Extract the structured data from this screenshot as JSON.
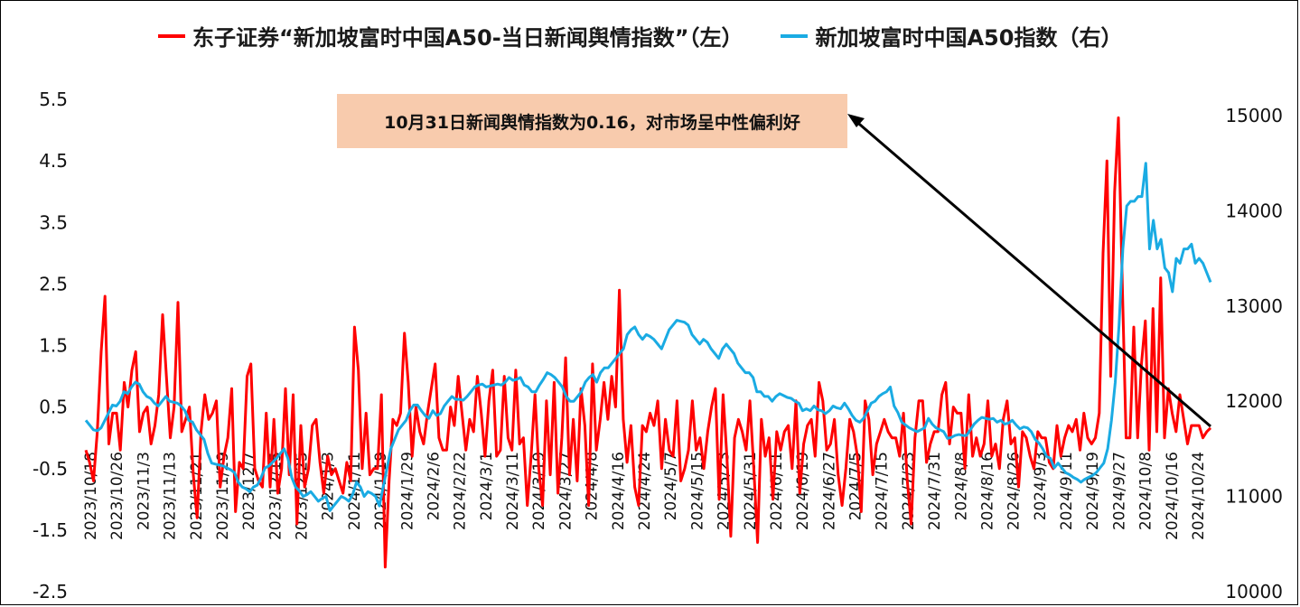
{
  "chart_data": {
    "type": "line",
    "title": "",
    "legend": [
      "东子证券“新加坡富时中国A50-当日新闻舆情指数”（左）",
      "新加坡富时中国A50指数（右）"
    ],
    "legend_position": "top",
    "annotation": "10月31日新闻舆情指数为0.16，对市场呈中性偏利好",
    "y_left": {
      "lim": [
        -2.5,
        5.5
      ],
      "ticks": [
        "5.5",
        "4.5",
        "3.5",
        "2.5",
        "1.5",
        "0.5",
        "-0.5",
        "-1.5",
        "-2.5"
      ]
    },
    "y_right": {
      "lim": [
        10000,
        15000
      ],
      "ticks": [
        "15000",
        "14000",
        "13000",
        "12000",
        "11000",
        "10000"
      ]
    },
    "grid": false,
    "x_tick_labels": [
      "2023/10/18",
      "2023/10/26",
      "2023/11/3",
      "2023/11/13",
      "2023/11/21",
      "2023/11/29",
      "2023/12/7",
      "2023/12/15",
      "2023/12/25",
      "2024/1/3",
      "2024/1/11",
      "2024/1/19",
      "2024/1/29",
      "2024/2/6",
      "2024/2/22",
      "2024/3/1",
      "2024/3/11",
      "2024/3/19",
      "2024/3/27",
      "2024/4/8",
      "2024/4/16",
      "2024/4/24",
      "2024/5/7",
      "2024/5/15",
      "2024/5/23",
      "2024/5/31",
      "2024/6/11",
      "2024/6/19",
      "2024/6/27",
      "2024/7/5",
      "2024/7/15",
      "2024/7/23",
      "2024/7/31",
      "2024/8/8",
      "2024/8/16",
      "2024/8/26",
      "2024/9/3",
      "2024/9/11",
      "2024/9/19",
      "2024/9/27",
      "2024/10/8",
      "2024/10/16",
      "2024/10/24"
    ],
    "series": [
      {
        "name": "东子证券“新加坡富时中国A50-当日新闻舆情指数”（左）",
        "axis": "left",
        "color": "#ff0000",
        "values": [
          -0.2,
          -0.4,
          -0.7,
          0.1,
          1.4,
          2.3,
          -0.1,
          0.4,
          0.4,
          -0.2,
          0.9,
          0.5,
          1.1,
          1.4,
          0.1,
          0.4,
          0.5,
          -0.1,
          0.2,
          0.7,
          2.0,
          1.0,
          0.0,
          0.5,
          2.2,
          0.1,
          0.3,
          0.5,
          -0.6,
          -1.3,
          0.1,
          0.7,
          0.3,
          0.4,
          0.6,
          -0.8,
          -0.3,
          0.0,
          0.8,
          -1.2,
          -0.4,
          -0.5,
          1.0,
          1.2,
          -0.5,
          -0.7,
          -0.8,
          0.4,
          -0.8,
          0.3,
          -0.9,
          -0.5,
          0.8,
          -0.6,
          0.7,
          -1.4,
          0.2,
          -0.8,
          -0.5,
          0.2,
          0.3,
          -0.4,
          -0.9,
          -0.3,
          -0.6,
          -0.5,
          -0.7,
          -0.9,
          -0.4,
          -0.7,
          1.8,
          1.1,
          -0.5,
          0.4,
          -0.6,
          -0.5,
          -0.5,
          0.7,
          -2.1,
          -0.7,
          0.3,
          0.2,
          0.4,
          1.7,
          0.9,
          -0.3,
          0.5,
          0.1,
          -0.1,
          0.4,
          0.8,
          1.2,
          0.0,
          -0.2,
          -0.2,
          0.5,
          0.2,
          1.0,
          0.4,
          -0.2,
          0.3,
          0.1,
          1.0,
          0.4,
          -0.3,
          0.6,
          1.1,
          -0.3,
          -0.2,
          1.0,
          0.0,
          -0.2,
          1.1,
          -0.1,
          0.0,
          -1.1,
          -0.3,
          0.7,
          -0.5,
          -1.1,
          0.6,
          -0.6,
          0.9,
          -0.9,
          0.0,
          1.3,
          -0.6,
          0.3,
          -0.7,
          0.8,
          0.2,
          -1.1,
          1.2,
          -0.2,
          0.3,
          0.9,
          0.3,
          1.0,
          0.5,
          2.4,
          0.3,
          -0.4,
          0.2,
          -0.8,
          -1.1,
          0.2,
          0.1,
          0.4,
          0.2,
          0.6,
          -0.5,
          0.3,
          -0.2,
          -0.3,
          0.6,
          -0.7,
          -0.5,
          -0.2,
          0.6,
          -0.2,
          0.0,
          -0.5,
          0.1,
          0.5,
          0.8,
          -1.0,
          0.7,
          -0.3,
          -1.6,
          0.0,
          0.3,
          0.1,
          -0.2,
          0.6,
          -0.5,
          -1.7,
          0.3,
          -0.3,
          0.0,
          -1.0,
          0.1,
          -0.2,
          0.1,
          0.2,
          -0.5,
          0.6,
          -0.9,
          -0.1,
          0.2,
          0.3,
          -0.3,
          0.9,
          0.6,
          -0.2,
          -0.1,
          0.3,
          -0.6,
          -1.1,
          -0.5,
          0.3,
          0.1,
          -0.3,
          -1.2,
          0.6,
          0.3,
          -0.6,
          -0.1,
          0.1,
          0.3,
          0.1,
          0.0,
          0.0,
          -0.3,
          0.4,
          -0.7,
          -1.4,
          0.0,
          0.6,
          0.6,
          -0.4,
          -0.1,
          0.1,
          0.1,
          0.7,
          0.9,
          -0.1,
          0.5,
          0.4,
          0.4,
          -0.5,
          0.7,
          -0.3,
          0.0,
          -0.3,
          -0.1,
          0.6,
          -0.3,
          -0.1,
          -0.5,
          0.3,
          0.6,
          -0.1,
          0.0,
          -0.8,
          0.1,
          0.0,
          -0.3,
          -0.5,
          0.1,
          0.0,
          0.0,
          -0.4,
          -0.5,
          0.2,
          -0.3,
          0.0,
          0.2,
          0.1,
          0.3,
          -0.2,
          0.4,
          0.0,
          -0.1,
          0.0,
          0.4,
          3.0,
          4.5,
          1.0,
          4.0,
          5.2,
          2.5,
          0.0,
          0.0,
          1.8,
          0.0,
          1.2,
          1.9,
          -0.2,
          2.1,
          0.1,
          2.6,
          0.0,
          0.8,
          0.4,
          0.1,
          0.7,
          0.3,
          -0.1,
          0.2,
          0.2,
          0.2,
          0.0,
          0.1,
          0.16
        ],
        "note": "values approximated from the plotted line"
      },
      {
        "name": "新加坡富时中国A50指数（右）",
        "axis": "right",
        "color": "#1aabe3",
        "values": [
          11800,
          11750,
          11700,
          11690,
          11720,
          11800,
          11880,
          11960,
          11950,
          12000,
          12100,
          12080,
          12150,
          12200,
          12180,
          12100,
          12050,
          12030,
          11980,
          11950,
          12000,
          12050,
          12000,
          11990,
          11980,
          11950,
          11900,
          11800,
          11780,
          11700,
          11650,
          11600,
          11450,
          11350,
          11340,
          11330,
          11320,
          11300,
          11280,
          11250,
          11150,
          11100,
          11080,
          11050,
          11100,
          11120,
          11200,
          11300,
          11320,
          11360,
          11400,
          11450,
          11500,
          11400,
          11200,
          11100,
          11060,
          11000,
          11020,
          11050,
          11000,
          10950,
          10980,
          11000,
          10850,
          10900,
          10950,
          11000,
          10980,
          10950,
          11020,
          11150,
          11100,
          11000,
          11050,
          11030,
          11000,
          10900,
          11100,
          11300,
          11500,
          11600,
          11700,
          11750,
          11800,
          11900,
          11960,
          11960,
          11900,
          11850,
          11820,
          11900,
          11850,
          11870,
          11950,
          12000,
          12050,
          12020,
          12020,
          12010,
          12050,
          12100,
          12150,
          12170,
          12180,
          12150,
          12160,
          12170,
          12180,
          12170,
          12200,
          12250,
          12220,
          12230,
          12250,
          12170,
          12150,
          12100,
          12100,
          12170,
          12230,
          12300,
          12280,
          12250,
          12200,
          12150,
          12050,
          12000,
          12000,
          12050,
          12100,
          12200,
          12250,
          12280,
          12200,
          12300,
          12350,
          12350,
          12400,
          12450,
          12500,
          12550,
          12700,
          12750,
          12780,
          12700,
          12650,
          12700,
          12680,
          12650,
          12600,
          12550,
          12650,
          12750,
          12800,
          12850,
          12840,
          12830,
          12800,
          12700,
          12650,
          12600,
          12650,
          12620,
          12550,
          12500,
          12450,
          12550,
          12600,
          12550,
          12500,
          12400,
          12350,
          12300,
          12300,
          12250,
          12100,
          12100,
          12050,
          12050,
          12000,
          12050,
          12080,
          12060,
          12040,
          12030,
          12000,
          11980,
          11900,
          11920,
          11900,
          11950,
          11910,
          11900,
          11870,
          11900,
          11950,
          11930,
          11920,
          11980,
          11920,
          11850,
          11800,
          11780,
          11820,
          11900,
          11980,
          12000,
          12050,
          12080,
          12100,
          12150,
          11950,
          11880,
          11780,
          11750,
          11720,
          11700,
          11680,
          11700,
          11720,
          11820,
          11760,
          11720,
          11700,
          11680,
          11610,
          11620,
          11640,
          11650,
          11640,
          11640,
          11700,
          11760,
          11800,
          11830,
          11820,
          11810,
          11820,
          11780,
          11800,
          11760,
          11770,
          11800,
          11750,
          11710,
          11730,
          11720,
          11680,
          11600,
          11560,
          11500,
          11420,
          11400,
          11300,
          11350,
          11300,
          11250,
          11230,
          11200,
          11180,
          11150,
          11180,
          11200,
          11220,
          11250,
          11300,
          11350,
          11500,
          11800,
          12200,
          12800,
          13600,
          14050,
          14100,
          14100,
          14150,
          14150,
          14500,
          13600,
          13900,
          13600,
          13700,
          13400,
          13350,
          13150,
          13500,
          13450,
          13600,
          13600,
          13650,
          13450,
          13500,
          13450,
          13350,
          13250
        ]
      }
    ]
  }
}
